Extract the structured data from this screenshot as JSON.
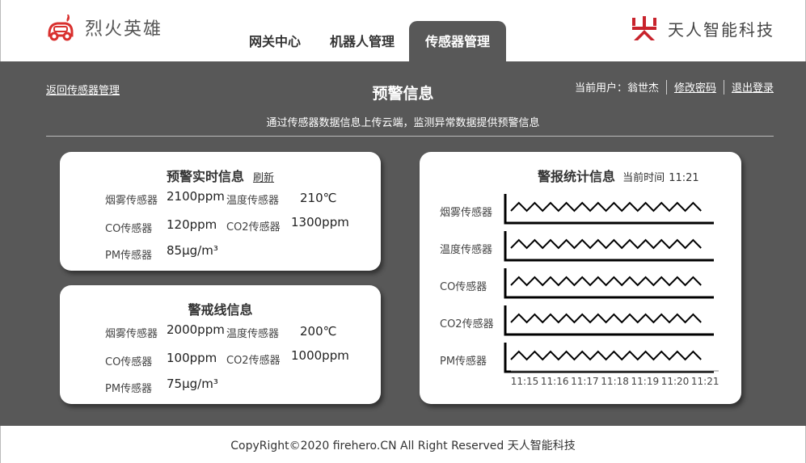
{
  "header": {
    "logo_text": "烈火英雄",
    "brand_text": "天人智能科技",
    "colors": {
      "logo_red": "#d9302e",
      "brand_red": "#c8232c"
    }
  },
  "nav": {
    "tabs": [
      {
        "label": "网关中心",
        "active": false
      },
      {
        "label": "机器人管理",
        "active": false
      },
      {
        "label": "传感器管理",
        "active": true
      }
    ]
  },
  "page": {
    "back_link": "返回传感器管理",
    "title": "预警信息",
    "subtitle": "通过传感器数据信息上传云端，监测异常数据提供预警信息",
    "user_label": "当前用户：",
    "user_name": "翁世杰",
    "change_password": "修改密码",
    "logout": "退出登录",
    "background": "#585858"
  },
  "realtime": {
    "title": "预警实时信息",
    "refresh": "刷新",
    "rows": [
      {
        "l1": "烟雾传感器",
        "v1": "2100ppm",
        "l2": "温度传感器",
        "v2": "210℃"
      },
      {
        "l1": "CO传感器",
        "v1": "120ppm",
        "l2": "CO2传感器",
        "v2": "1300ppm"
      },
      {
        "l1": "PM传感器",
        "v1": "85μg/m³"
      }
    ]
  },
  "threshold": {
    "title": "警戒线信息",
    "rows": [
      {
        "l1": "烟雾传感器",
        "v1": "2000ppm",
        "l2": "温度传感器",
        "v2": "200℃"
      },
      {
        "l1": "CO传感器",
        "v1": "100ppm",
        "l2": "CO2传感器",
        "v2": "1000ppm"
      },
      {
        "l1": "PM传感器",
        "v1": "75μg/m³"
      }
    ]
  },
  "stats": {
    "title": "警报统计信息",
    "time_label": "当前时间",
    "time_value": "11:21"
  },
  "chart_data": {
    "type": "line",
    "title": "警报统计信息",
    "x": [
      "11:15",
      "11:16",
      "11:17",
      "11:18",
      "11:19",
      "11:20",
      "11:21"
    ],
    "series": [
      {
        "name": "烟雾传感器"
      },
      {
        "name": "温度传感器"
      },
      {
        "name": "CO传感器"
      },
      {
        "name": "CO2传感器"
      },
      {
        "name": "PM传感器"
      }
    ],
    "style": "zigzag sparkline per sensor, no y-axis values shown"
  },
  "footer": {
    "text": "CopyRight©2020 firehero.CN All Right Reserved 天人智能科技"
  }
}
